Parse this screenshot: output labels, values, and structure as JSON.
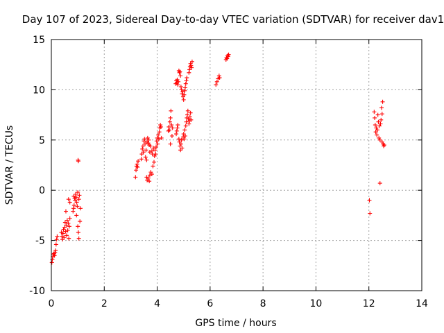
{
  "chart_data": {
    "type": "scatter",
    "title": "Day 107 of 2023, Sidereal Day-to-day VTEC variation (SDTVAR) for receiver dav1",
    "xlabel": "GPS time / hours",
    "ylabel": "SDTVAR / TECUs",
    "xlim": [
      0,
      14
    ],
    "ylim": [
      -10,
      15
    ],
    "xticks": [
      "0",
      "2",
      "4",
      "6",
      "8",
      "10",
      "12",
      "14"
    ],
    "yticks": [
      "-10",
      "-5",
      "0",
      "5",
      "10",
      "15"
    ],
    "grid": true,
    "marker": "+",
    "color": "#ff0000",
    "series": [
      {
        "name": "SDTVAR",
        "points": [
          [
            0.02,
            -7.2
          ],
          [
            0.04,
            -6.9
          ],
          [
            0.06,
            -6.6
          ],
          [
            0.08,
            -6.4
          ],
          [
            0.1,
            -6.3
          ],
          [
            0.12,
            -6.5
          ],
          [
            0.14,
            -6.2
          ],
          [
            0.16,
            -6.0
          ],
          [
            0.18,
            -5.4
          ],
          [
            0.2,
            -4.9
          ],
          [
            0.22,
            -4.6
          ],
          [
            0.38,
            -4.2
          ],
          [
            0.4,
            -4.6
          ],
          [
            0.42,
            -4.9
          ],
          [
            0.44,
            -4.3
          ],
          [
            0.46,
            -3.9
          ],
          [
            0.48,
            -4.7
          ],
          [
            0.5,
            -3.7
          ],
          [
            0.52,
            -3.2
          ],
          [
            0.54,
            -4.1
          ],
          [
            0.55,
            -2.1
          ],
          [
            0.56,
            -3.5
          ],
          [
            0.58,
            -4.5
          ],
          [
            0.6,
            -3.0
          ],
          [
            0.62,
            -4.0
          ],
          [
            0.64,
            -3.3
          ],
          [
            0.65,
            -0.9
          ],
          [
            0.66,
            -4.8
          ],
          [
            0.68,
            -3.6
          ],
          [
            0.7,
            -1.2
          ],
          [
            0.7,
            -2.8
          ],
          [
            0.82,
            -2.1
          ],
          [
            0.84,
            -1.8
          ],
          [
            0.85,
            -0.6
          ],
          [
            0.86,
            -1.5
          ],
          [
            0.88,
            -0.8
          ],
          [
            0.9,
            -1.0
          ],
          [
            0.92,
            -0.4
          ],
          [
            0.94,
            -0.7
          ],
          [
            0.95,
            -2.5
          ],
          [
            0.96,
            -1.2
          ],
          [
            0.98,
            -1.6
          ],
          [
            1.0,
            -0.2
          ],
          [
            1.0,
            -3.6
          ],
          [
            1.01,
            3.0
          ],
          [
            1.02,
            -4.2
          ],
          [
            1.02,
            2.9
          ],
          [
            1.04,
            -4.8
          ],
          [
            1.04,
            -0.9
          ],
          [
            1.06,
            -0.5
          ],
          [
            1.08,
            -3.1
          ],
          [
            1.1,
            -1.8
          ],
          [
            3.18,
            1.3
          ],
          [
            3.2,
            2.0
          ],
          [
            3.22,
            2.4
          ],
          [
            3.24,
            2.6
          ],
          [
            3.26,
            2.3
          ],
          [
            3.28,
            2.9
          ],
          [
            3.4,
            3.1
          ],
          [
            3.42,
            3.6
          ],
          [
            3.44,
            4.1
          ],
          [
            3.46,
            4.4
          ],
          [
            3.48,
            3.8
          ],
          [
            3.5,
            4.9
          ],
          [
            3.52,
            5.1
          ],
          [
            3.54,
            4.6
          ],
          [
            3.56,
            3.3
          ],
          [
            3.58,
            4.0
          ],
          [
            3.6,
            3.0
          ],
          [
            3.62,
            4.8
          ],
          [
            3.64,
            5.2
          ],
          [
            3.66,
            4.7
          ],
          [
            3.68,
            5.0
          ],
          [
            3.7,
            4.5
          ],
          [
            3.72,
            3.8
          ],
          [
            3.74,
            4.4
          ],
          [
            3.6,
            1.3
          ],
          [
            3.62,
            1.0
          ],
          [
            3.66,
            1.2
          ],
          [
            3.7,
            0.9
          ],
          [
            3.72,
            1.5
          ],
          [
            3.76,
            1.8
          ],
          [
            3.8,
            1.6
          ],
          [
            3.84,
            2.4
          ],
          [
            3.88,
            2.8
          ],
          [
            3.9,
            3.4
          ],
          [
            3.92,
            4.0
          ],
          [
            3.94,
            3.6
          ],
          [
            3.96,
            4.3
          ],
          [
            3.8,
            3.9
          ],
          [
            3.82,
            3.6
          ],
          [
            3.86,
            4.2
          ],
          [
            3.98,
            4.9
          ],
          [
            4.0,
            5.2
          ],
          [
            4.02,
            4.6
          ],
          [
            4.04,
            5.5
          ],
          [
            4.06,
            5.1
          ],
          [
            4.08,
            5.8
          ],
          [
            4.1,
            6.2
          ],
          [
            4.12,
            6.5
          ],
          [
            4.14,
            6.3
          ],
          [
            4.16,
            5.2
          ],
          [
            4.42,
            5.9
          ],
          [
            4.44,
            6.3
          ],
          [
            4.46,
            6.0
          ],
          [
            4.48,
            6.8
          ],
          [
            4.5,
            7.2
          ],
          [
            4.5,
            4.6
          ],
          [
            4.52,
            7.9
          ],
          [
            4.54,
            6.5
          ],
          [
            4.56,
            5.4
          ],
          [
            4.58,
            6.2
          ],
          [
            4.7,
            10.6
          ],
          [
            4.72,
            10.9
          ],
          [
            4.74,
            10.7
          ],
          [
            4.76,
            11.0
          ],
          [
            4.78,
            10.5
          ],
          [
            4.8,
            10.8
          ],
          [
            4.82,
            11.9
          ],
          [
            4.84,
            11.7
          ],
          [
            4.86,
            11.8
          ],
          [
            4.88,
            11.4
          ],
          [
            4.72,
            5.6
          ],
          [
            4.74,
            5.9
          ],
          [
            4.76,
            6.2
          ],
          [
            4.78,
            6.5
          ],
          [
            4.82,
            5.1
          ],
          [
            4.84,
            4.8
          ],
          [
            4.86,
            4.4
          ],
          [
            4.88,
            4.0
          ],
          [
            4.9,
            4.6
          ],
          [
            4.92,
            5.0
          ],
          [
            4.94,
            4.2
          ],
          [
            4.9,
            10.3
          ],
          [
            4.92,
            10.0
          ],
          [
            4.94,
            9.6
          ],
          [
            4.96,
            9.8
          ],
          [
            4.98,
            9.3
          ],
          [
            5.0,
            9.0
          ],
          [
            5.02,
            9.5
          ],
          [
            5.04,
            9.9
          ],
          [
            5.06,
            10.2
          ],
          [
            5.08,
            10.6
          ],
          [
            5.1,
            10.9
          ],
          [
            5.12,
            11.2
          ],
          [
            4.98,
            5.3
          ],
          [
            5.0,
            5.6
          ],
          [
            5.02,
            5.1
          ],
          [
            5.04,
            6.0
          ],
          [
            5.06,
            5.4
          ],
          [
            5.08,
            6.4
          ],
          [
            5.1,
            6.8
          ],
          [
            5.12,
            7.2
          ],
          [
            5.14,
            7.5
          ],
          [
            5.16,
            7.9
          ],
          [
            5.18,
            7.1
          ],
          [
            5.2,
            6.6
          ],
          [
            5.22,
            6.9
          ],
          [
            5.24,
            7.3
          ],
          [
            5.26,
            7.7
          ],
          [
            5.28,
            7.0
          ],
          [
            5.2,
            11.7
          ],
          [
            5.22,
            12.0
          ],
          [
            5.24,
            12.3
          ],
          [
            5.26,
            12.6
          ],
          [
            5.28,
            12.4
          ],
          [
            5.3,
            12.2
          ],
          [
            5.32,
            12.8
          ],
          [
            6.22,
            10.5
          ],
          [
            6.26,
            10.8
          ],
          [
            6.3,
            11.1
          ],
          [
            6.34,
            11.4
          ],
          [
            6.36,
            11.2
          ],
          [
            6.6,
            13.0
          ],
          [
            6.62,
            13.2
          ],
          [
            6.64,
            13.1
          ],
          [
            6.66,
            13.4
          ],
          [
            6.68,
            13.3
          ],
          [
            6.7,
            13.5
          ],
          [
            12.02,
            -1.0
          ],
          [
            12.04,
            -2.3
          ],
          [
            12.2,
            7.8
          ],
          [
            12.22,
            7.2
          ],
          [
            12.24,
            6.5
          ],
          [
            12.26,
            5.8
          ],
          [
            12.28,
            6.2
          ],
          [
            12.3,
            5.5
          ],
          [
            12.32,
            6.0
          ],
          [
            12.34,
            7.5
          ],
          [
            12.36,
            6.8
          ],
          [
            12.38,
            5.2
          ],
          [
            12.4,
            6.4
          ],
          [
            12.42,
            0.7
          ],
          [
            12.42,
            5.0
          ],
          [
            12.44,
            6.6
          ],
          [
            12.46,
            7.0
          ],
          [
            12.48,
            8.2
          ],
          [
            12.5,
            4.8
          ],
          [
            12.5,
            7.6
          ],
          [
            12.52,
            8.8
          ],
          [
            12.54,
            4.6
          ],
          [
            12.56,
            4.4
          ],
          [
            12.58,
            4.5
          ]
        ]
      }
    ]
  }
}
